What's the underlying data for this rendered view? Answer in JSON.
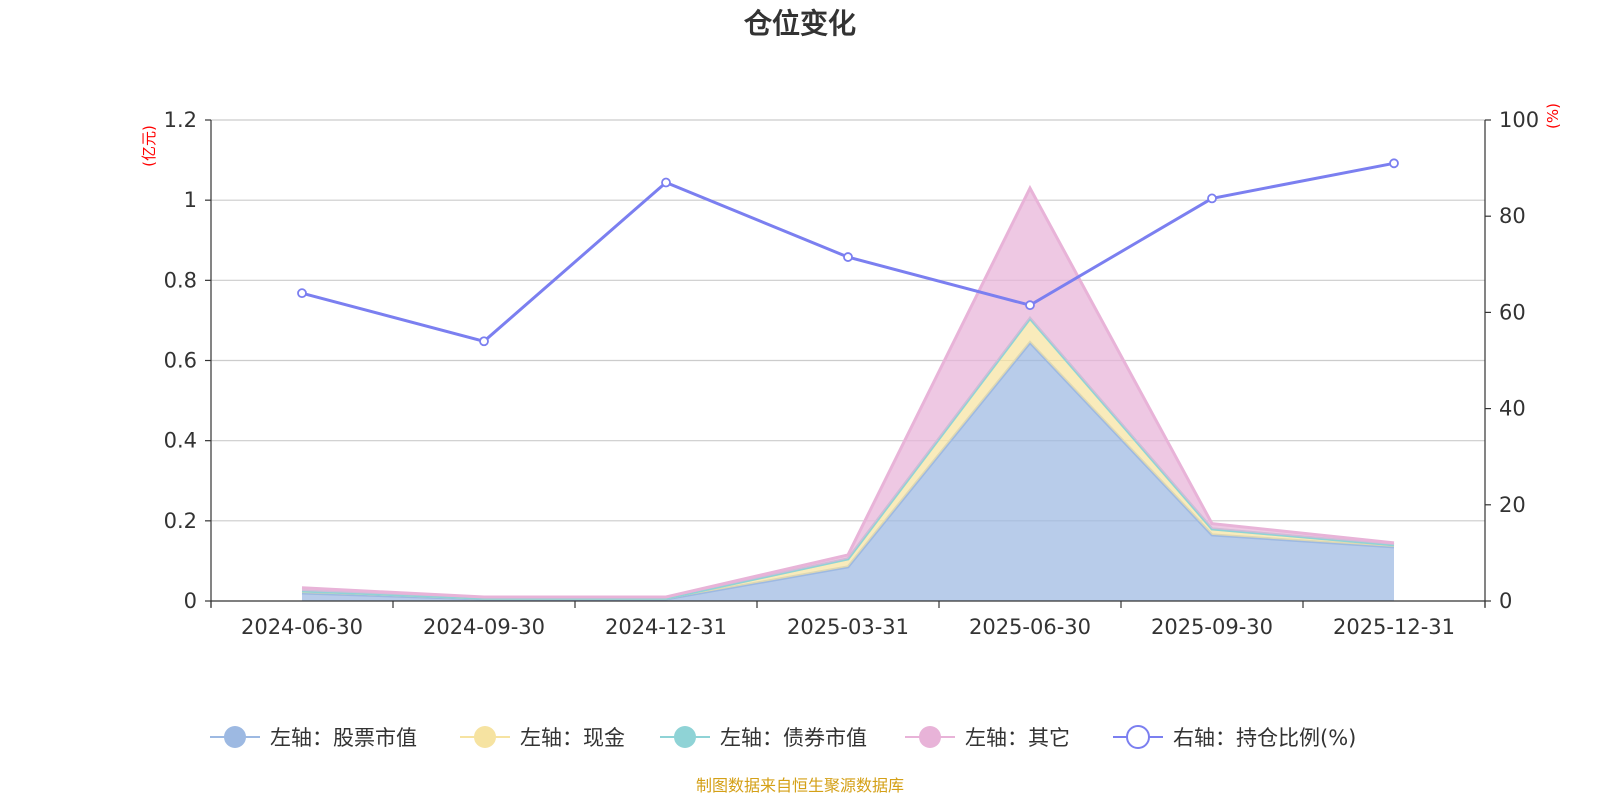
{
  "chart_data": {
    "type": "area",
    "title": "仓位变化",
    "categories": [
      "2024-06-30",
      "2024-09-30",
      "2024-12-31",
      "2025-03-31",
      "2025-06-30",
      "2025-09-30",
      "2025-12-31"
    ],
    "left_axis": {
      "unit": "(亿元)",
      "ylim": [
        0,
        1.2
      ],
      "ticks": [
        "0",
        "0.2",
        "0.4",
        "0.6",
        "0.8",
        "1",
        "1.2"
      ],
      "tick_values": [
        0,
        0.2,
        0.4,
        0.6,
        0.8,
        1.0,
        1.2
      ]
    },
    "right_axis": {
      "unit": "(%)",
      "ylim": [
        0,
        100
      ],
      "ticks": [
        "0",
        "20",
        "40",
        "60",
        "80",
        "100"
      ],
      "tick_values": [
        0,
        20,
        40,
        60,
        80,
        100
      ]
    },
    "series": [
      {
        "name": "左轴：股票市值",
        "axis": "left",
        "kind": "stacked-area",
        "color": "#9db9e2",
        "values": [
          0.02,
          0.005,
          0.005,
          0.085,
          0.645,
          0.165,
          0.135
        ]
      },
      {
        "name": "左轴：现金",
        "axis": "left",
        "kind": "stacked-area",
        "color": "#f6e3a1",
        "values": [
          0.005,
          0.002,
          0.002,
          0.02,
          0.06,
          0.015,
          0.005
        ]
      },
      {
        "name": "左轴：债券市值",
        "axis": "left",
        "kind": "stacked-area",
        "color": "#8fd3d6",
        "values": [
          0,
          0,
          0,
          0,
          0,
          0,
          0
        ]
      },
      {
        "name": "左轴：其它",
        "axis": "left",
        "kind": "stacked-area",
        "color": "#e8b3d8",
        "values": [
          0.008,
          0.003,
          0.003,
          0.01,
          0.325,
          0.013,
          0.005
        ]
      },
      {
        "name": "右轴：持仓比例(%)",
        "axis": "right",
        "kind": "line",
        "color": "#7b7ff0",
        "values": [
          64,
          54,
          87,
          71.5,
          61.5,
          83.7,
          91
        ]
      }
    ],
    "source_note": "制图数据来自恒生聚源数据库"
  }
}
